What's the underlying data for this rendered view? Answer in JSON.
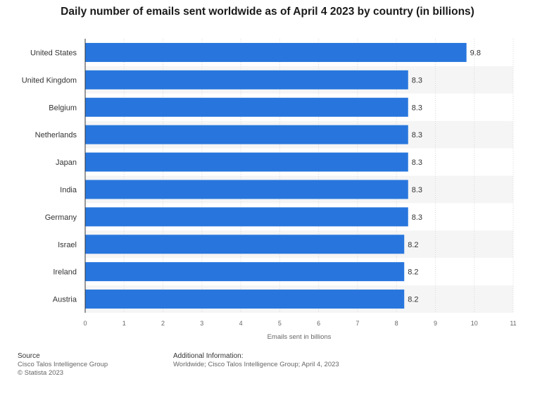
{
  "title": "Daily number of emails sent worldwide as of April 4 2023 by country (in billions)",
  "chart_data": {
    "type": "bar",
    "orientation": "horizontal",
    "categories": [
      "United States",
      "United Kingdom",
      "Belgium",
      "Netherlands",
      "Japan",
      "India",
      "Germany",
      "Israel",
      "Ireland",
      "Austria"
    ],
    "values": [
      9.8,
      8.3,
      8.3,
      8.3,
      8.3,
      8.3,
      8.3,
      8.2,
      8.2,
      8.2
    ],
    "value_labels": [
      "9.8",
      "8.3",
      "8.3",
      "8.3",
      "8.3",
      "8.3",
      "8.3",
      "8.2",
      "8.2",
      "8.2"
    ],
    "xlabel": "Emails sent in billions",
    "xlim": [
      0,
      11
    ],
    "xticks": [
      "0",
      "1",
      "2",
      "3",
      "4",
      "5",
      "6",
      "7",
      "8",
      "9",
      "10",
      "11"
    ],
    "grid": true,
    "bar_color": "#2876dd"
  },
  "footer": {
    "source_heading": "Source",
    "source_name": "Cisco Talos Intelligence Group",
    "copyright": "© Statista 2023",
    "info_heading": "Additional Information:",
    "info_text": "Worldwide; Cisco Talos Intelligence Group; April 4, 2023"
  }
}
